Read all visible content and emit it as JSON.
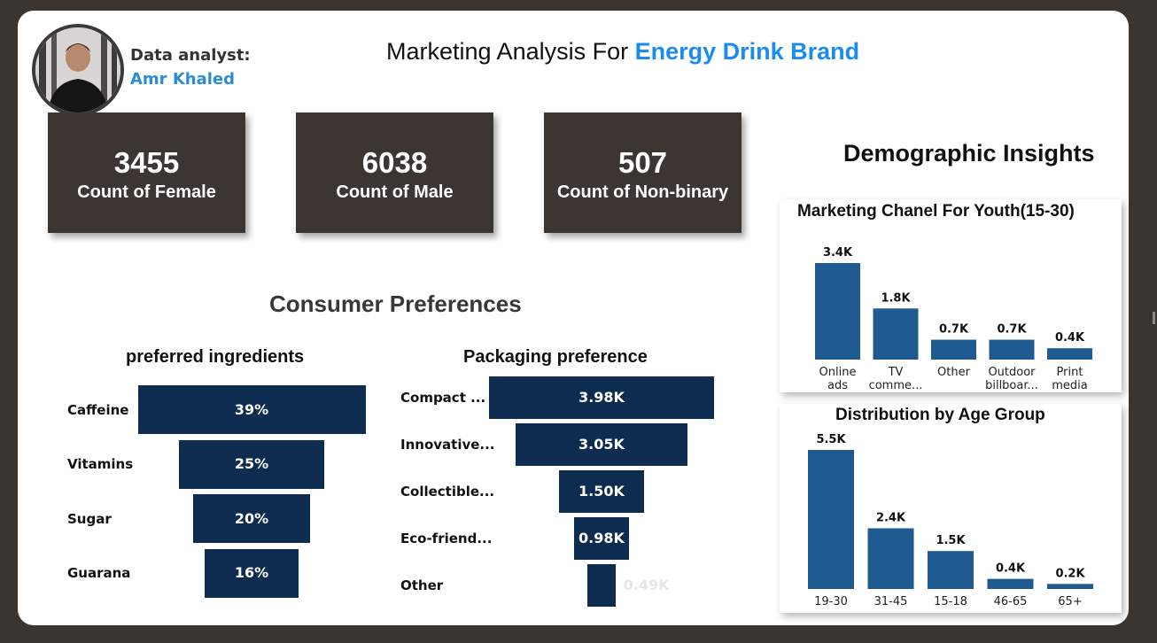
{
  "header": {
    "analyst_label": "Data analyst:",
    "analyst_name": "Amr Khaled",
    "title_prefix": "Marketing Analysis For ",
    "title_accent": "Energy Drink Brand"
  },
  "kpis": [
    {
      "value": "3455",
      "label": "Count of Female"
    },
    {
      "value": "6038",
      "label": "Count of Male"
    },
    {
      "value": "507",
      "label": "Count of Non-binary"
    }
  ],
  "sections": {
    "consumer": "Consumer Preferences",
    "demographic": "Demographic Insights"
  },
  "colors": {
    "funnel": "#0e2c50",
    "column": "#1f5b91",
    "kpi_bg": "#3c3531",
    "accent": "#1a8cf0"
  },
  "chart_data": [
    {
      "type": "bar",
      "title": "preferred ingredients",
      "categories": [
        "Caffeine",
        "Vitamins",
        "Sugar",
        "Guarana"
      ],
      "values": [
        39,
        25,
        20,
        16
      ],
      "value_labels": [
        "39%",
        "25%",
        "20%",
        "16%"
      ]
    },
    {
      "type": "bar",
      "title": "Packaging preference",
      "categories": [
        "Compact ...",
        "Innovative...",
        "Collectible...",
        "Eco-friend...",
        "Other"
      ],
      "values": [
        3.98,
        3.05,
        1.5,
        0.98,
        0.49
      ],
      "value_labels": [
        "3.98K",
        "3.05K",
        "1.50K",
        "0.98K",
        "0.49K"
      ]
    },
    {
      "type": "bar",
      "title": "Marketing Chanel For Youth(15-30)",
      "categories": [
        "Online ads",
        "TV comme...",
        "Other",
        "Outdoor billboar...",
        "Print media"
      ],
      "category_lines": [
        [
          "Online",
          "ads"
        ],
        [
          "TV",
          "comme..."
        ],
        [
          "Other"
        ],
        [
          "Outdoor",
          "billboar..."
        ],
        [
          "Print",
          "media"
        ]
      ],
      "values": [
        3.4,
        1.8,
        0.7,
        0.7,
        0.4
      ],
      "value_labels": [
        "3.4K",
        "1.8K",
        "0.7K",
        "0.7K",
        "0.4K"
      ]
    },
    {
      "type": "bar",
      "title": "Distribution by Age Group",
      "categories": [
        "19-30",
        "31-45",
        "15-18",
        "46-65",
        "65+"
      ],
      "category_lines": [
        [
          "19-30"
        ],
        [
          "31-45"
        ],
        [
          "15-18"
        ],
        [
          "46-65"
        ],
        [
          "65+"
        ]
      ],
      "values": [
        5.5,
        2.4,
        1.5,
        0.4,
        0.2
      ],
      "value_labels": [
        "5.5K",
        "2.4K",
        "1.5K",
        "0.4K",
        "0.2K"
      ]
    }
  ]
}
